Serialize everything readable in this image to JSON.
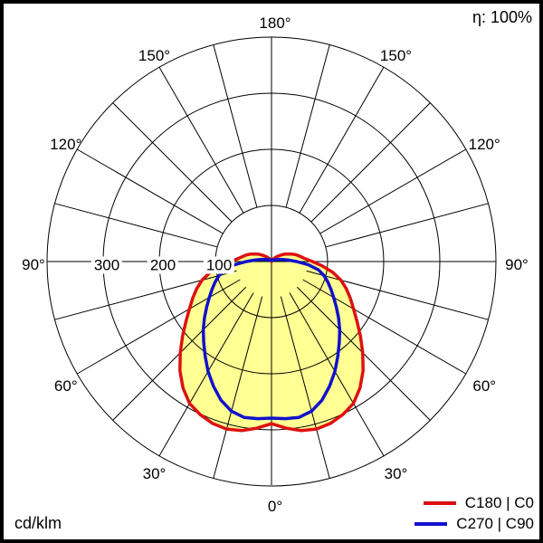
{
  "header": {
    "efficiency": "η: 100%"
  },
  "footer": {
    "unit": "cd/klm"
  },
  "legend": {
    "items": [
      {
        "label": "C180 | C0",
        "color": "#dd1111"
      },
      {
        "label": "C270 | C90",
        "color": "#1111cc"
      }
    ]
  },
  "axis": {
    "angle_labels": [
      {
        "text": "180°",
        "theta": 180,
        "side": 0
      },
      {
        "text": "150°",
        "theta": 150,
        "side": -1
      },
      {
        "text": "150°",
        "theta": 150,
        "side": 1
      },
      {
        "text": "120°",
        "theta": 120,
        "side": -1
      },
      {
        "text": "120°",
        "theta": 120,
        "side": 1
      },
      {
        "text": "90°",
        "theta": 90,
        "side": -1
      },
      {
        "text": "90°",
        "theta": 90,
        "side": 1
      },
      {
        "text": "60°",
        "theta": 60,
        "side": -1
      },
      {
        "text": "60°",
        "theta": 60,
        "side": 1
      },
      {
        "text": "30°",
        "theta": 30,
        "side": -1
      },
      {
        "text": "30°",
        "theta": 30,
        "side": 1
      },
      {
        "text": "0°",
        "theta": 0,
        "side": 0
      }
    ],
    "radial_labels": [
      {
        "text": "300",
        "value": 300
      },
      {
        "text": "200",
        "value": 200
      },
      {
        "text": "100",
        "value": 100
      }
    ]
  },
  "chart_data": {
    "type": "polar-photometric",
    "unit": "cd/klm",
    "efficiency_percent": 100,
    "rings_cd_klm": [
      100,
      200,
      300,
      400
    ],
    "spoke_step_deg": 15,
    "fill_color": "#ffff94",
    "legend_position": "bottom-right",
    "gamma_deg": [
      0,
      5,
      10,
      15,
      20,
      25,
      30,
      35,
      40,
      45,
      50,
      55,
      60,
      65,
      70,
      75,
      80,
      85,
      90,
      95,
      100,
      105,
      110,
      115,
      120,
      125,
      130,
      135,
      140,
      145,
      150,
      155,
      160,
      165,
      170,
      175,
      180
    ],
    "series": [
      {
        "name": "C180 | C0",
        "color": "#dd1111",
        "values": [
          289,
          298,
          306,
          309,
          307,
          301,
          292,
          275,
          254,
          230,
          207,
          186,
          169,
          155,
          142,
          128,
          111,
          91,
          73,
          60,
          52,
          46,
          39,
          32,
          26,
          20,
          15,
          11,
          8,
          6,
          4,
          3,
          2,
          2,
          1,
          1,
          0
        ]
      },
      {
        "name": "C270 | C90",
        "color": "#1111cc",
        "values": [
          279,
          281,
          282,
          276,
          263,
          245,
          226,
          206,
          188,
          172,
          156,
          141,
          128,
          117,
          107,
          97,
          85,
          66,
          45,
          30,
          21,
          15,
          11,
          8,
          6,
          5,
          4,
          3,
          3,
          3,
          3,
          3,
          3,
          3,
          3,
          3,
          3
        ]
      }
    ]
  }
}
